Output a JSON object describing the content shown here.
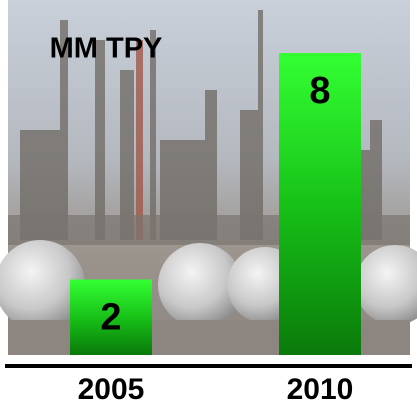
{
  "chart_data": {
    "type": "bar",
    "title": "MM TPY",
    "categories": [
      "2005",
      "2010"
    ],
    "values": [
      2,
      8
    ],
    "color": "#22ee22"
  }
}
